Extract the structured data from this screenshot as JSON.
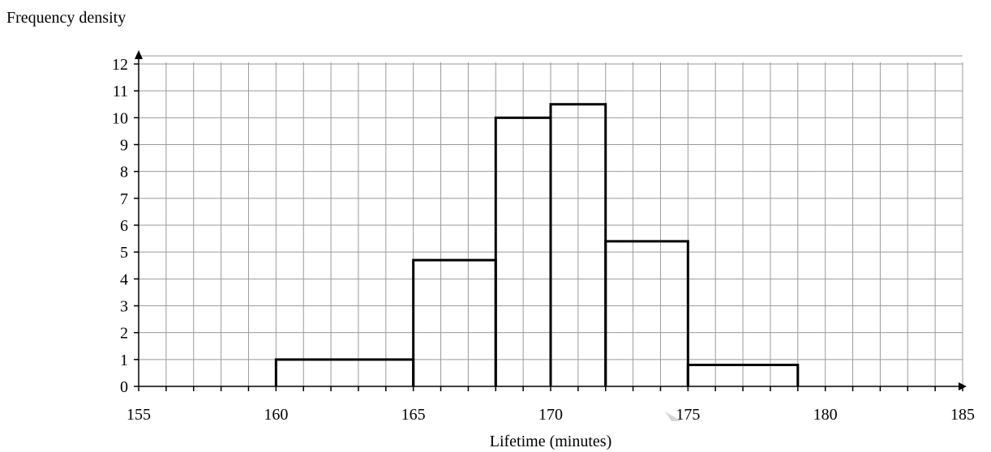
{
  "chart_data": {
    "type": "bar",
    "ylabel": "Frequency density",
    "xlabel": "Lifetime (minutes)",
    "xlim": [
      155,
      185
    ],
    "ylim": [
      0,
      12
    ],
    "x_ticks": [
      155,
      160,
      165,
      170,
      175,
      180,
      185
    ],
    "y_ticks": [
      0,
      1,
      2,
      3,
      4,
      5,
      6,
      7,
      8,
      9,
      10,
      11,
      12
    ],
    "grid": true,
    "bins": [
      {
        "from": 160,
        "to": 165,
        "frequency_density": 1
      },
      {
        "from": 165,
        "to": 168,
        "frequency_density": 4.7
      },
      {
        "from": 168,
        "to": 170,
        "frequency_density": 10
      },
      {
        "from": 170,
        "to": 172,
        "frequency_density": 10.5
      },
      {
        "from": 172,
        "to": 175,
        "frequency_density": 5.4
      },
      {
        "from": 175,
        "to": 179,
        "frequency_density": 0.8
      }
    ]
  }
}
